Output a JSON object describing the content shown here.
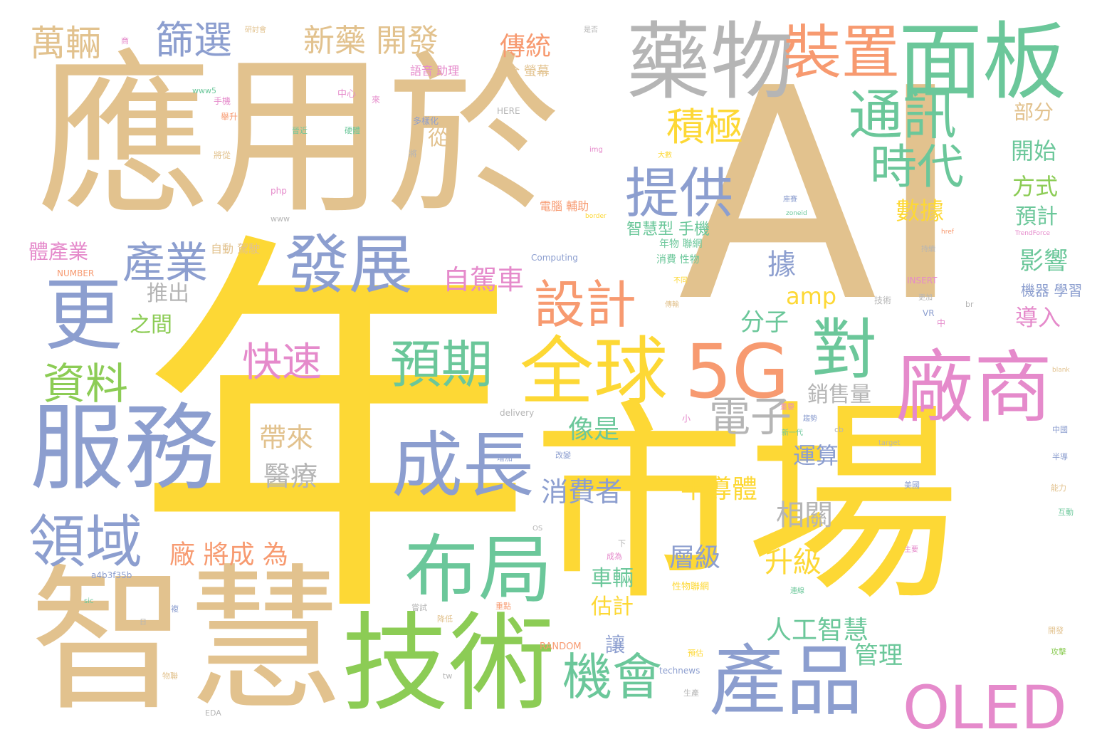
{
  "big": {
    "w_ying": "應用於",
    "w_ai": "AI",
    "w_nian": "年",
    "w_shichang": "市場",
    "w_zhihui": "智慧",
    "w_jishu": "技術",
    "w_yaowu": "藥物",
    "w_mianban": "面板",
    "w_zhuangzhi": "裝置",
    "w_fuwu": "服務",
    "w_geng": "更",
    "w_changshang": "廠商",
    "w_5g": "5G",
    "w_quanqiu": "全球",
    "w_dui": "對",
    "w_chanpin": "產品",
    "w_oled": "OLED",
    "w_buju": "布局",
    "w_chengzhang": "成長",
    "w_yuqi": "預期",
    "w_fazhan": "發展",
    "w_lingyu": "領域",
    "w_sheji": "設計",
    "w_tixun": "通訊",
    "w_shidai": "時代",
    "w_tigong": "提供",
    "w_jiqi_hui": "機會",
    "w_chanye": "產業",
    "w_ziliao": "資料",
    "w_kuaisu": "快速",
    "w_dianzi": "電子",
    "w_jiji": "積極",
    "w_shaixuan": "篩選",
    "w_wanliang": "萬輛",
    "w_xinyao": "新藥 開發"
  },
  "mid": {
    "w_chuantong": "傳統",
    "w_quanyingmu": "全 螢幕",
    "w_yuyin": "語音 助理",
    "w_cong": "從",
    "w_tuichu": "推出",
    "w_zhijian": "之間",
    "w_zijiache": "自駕車",
    "w_amp": "amp",
    "w_fenzi": "分子",
    "w_ju": "據",
    "w_shuju": "數據",
    "w_xiaoshouliang": "銷售量",
    "w_xiangshi": "像是",
    "w_daila": "帶來",
    "w_yiliao": "醫療",
    "w_yunsuan": "運算",
    "w_xiaofeizhe": "消費者",
    "w_bandaoti": "半導體",
    "w_xiangguan": "相關",
    "w_changjiang": "廠 將成 為",
    "w_cengji": "層級",
    "w_shengji": "升級",
    "w_cheliang": "車輛",
    "w_guji": "估計",
    "w_rengong": "人工智慧",
    "w_rang": "讓",
    "w_guanli": "管理",
    "w_tichanye": "體產業",
    "w_zhihuixing": "智慧型 手機",
    "w_bufen": "部分",
    "w_kaishi": "開始",
    "w_fangshi": "方式",
    "w_yuji": "預計",
    "w_yingxiang": "影響",
    "w_daoru": "導入",
    "w_jiqixuexi": "機器 學習",
    "w_diannao": "電腦 輔助",
    "w_nianwu": "年物 聯網",
    "w_xiaofei": "消費 性物",
    "w_zidong": "自動 駕駛"
  },
  "small": {
    "s1": "手機",
    "s2": "www5",
    "s3": "舉升",
    "s4": "將從",
    "s5": "中心",
    "s6": "來",
    "s7": "HERE",
    "s8": "多樣化",
    "s9": "硬體",
    "s10": "晉近",
    "s11": "將",
    "s12": "php",
    "s13": "www",
    "s14": "Computing",
    "s15": "NUMBER",
    "s16": "INSERT",
    "s17": "delivery",
    "s18": "VR",
    "s19": "中",
    "s20": "技術",
    "s21": "a4b3f35b",
    "s22": "RANDOM",
    "s23": "technews",
    "s24": "tw",
    "s25": "EDA",
    "s26": "br",
    "s27": "cb",
    "s28": "target",
    "s29": "OS",
    "s30": "互動",
    "s31": "半導",
    "s32": "中國",
    "s33": "美國",
    "s34": "能力",
    "s35": "小",
    "s36": "改變",
    "s37": "增加",
    "s38": "下",
    "s39": "成為",
    "s40": "性物聯網",
    "s41": "重點",
    "s42": "降低",
    "s43": "嘗試",
    "s44": "複",
    "s45": "預估",
    "s46": "生產",
    "s47": "物聯",
    "s48": "開發",
    "s49": "攻擊",
    "s50": "TrendForce",
    "s51": "href",
    "s52": "持續",
    "s53": "blank",
    "s54": "主要",
    "s55": "趨勢",
    "s56": "研討會",
    "s57": "商",
    "s58": "是否",
    "s59": "img",
    "s60": "大數",
    "s61": "不同",
    "s62": "傳輸",
    "s63": "品片",
    "s64": "zoneid",
    "s65": "border",
    "s66": "庫賽",
    "s67": "更加",
    "s68": "新一代",
    "s69": "重要",
    "s70": "連線",
    "s71": "sic",
    "s72": "日"
  }
}
